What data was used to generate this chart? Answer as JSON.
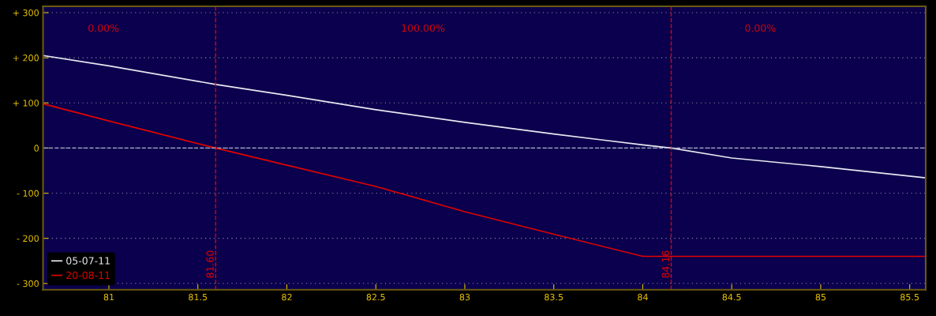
{
  "chart_data": {
    "type": "line",
    "x": [
      80.63,
      81.0,
      81.6,
      82.0,
      82.5,
      83.0,
      83.5,
      84.0,
      84.16,
      84.5,
      85.0,
      85.59
    ],
    "series": [
      {
        "name": "05-07-11",
        "color": "#e8e8f0",
        "values": [
          205,
          182,
          141,
          117,
          85,
          57,
          31,
          7,
          0,
          -22,
          -41,
          -66
        ]
      },
      {
        "name": "20-08-11",
        "color": "#e00000",
        "values": [
          98,
          60,
          0,
          -38,
          -85,
          -141,
          -191,
          -240,
          -240,
          -240,
          -240,
          -240
        ]
      }
    ],
    "xlim": [
      80.63,
      85.59
    ],
    "xticks": [
      81,
      81.5,
      82,
      82.5,
      83,
      83.5,
      84,
      84.5,
      85,
      85.5
    ],
    "ylim": [
      -314,
      314
    ],
    "yticks": [
      {
        "value": -300,
        "label": "- 300"
      },
      {
        "value": -200,
        "label": "- 200"
      },
      {
        "value": -100,
        "label": "- 100"
      },
      0,
      {
        "value": 100,
        "label": "+ 100"
      },
      {
        "value": 200,
        "label": "+ 200"
      },
      {
        "value": 300,
        "label": "+ 300"
      }
    ],
    "grid": "y",
    "legend": "bottom left",
    "ref_lines": [
      {
        "axis": "x",
        "value": 81.6,
        "label": "81.60",
        "color": "#e00000",
        "line_style": "dashed"
      },
      {
        "axis": "x",
        "value": 84.16,
        "label": "84.16",
        "color": "#e00000",
        "line_style": "dashed"
      },
      {
        "axis": "y",
        "value": 0,
        "color": "#b0b0d0",
        "line_style": "dashed"
      }
    ],
    "annotations": [
      "0.00%",
      "100.00%",
      "0.00%"
    ]
  }
}
